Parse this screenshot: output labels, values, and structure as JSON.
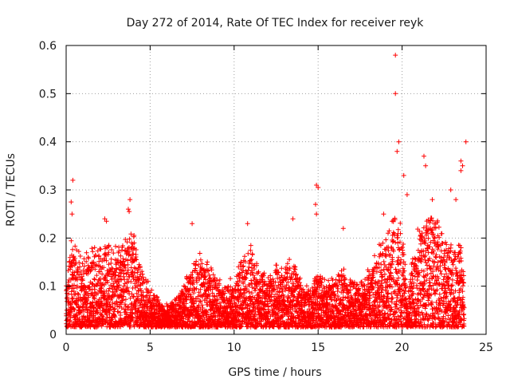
{
  "chart_data": {
    "type": "scatter",
    "title": "Day 272 of 2014, Rate Of TEC Index for receiver reyk",
    "xlabel": "GPS time / hours",
    "ylabel": "ROTI / TECUs",
    "xlim": [
      0,
      25
    ],
    "ylim": [
      0,
      0.6
    ],
    "xticks": [
      "0",
      "5",
      "10",
      "15",
      "20",
      "25"
    ],
    "yticks": [
      "0",
      "0.1",
      "0.2",
      "0.3",
      "0.4",
      "0.5",
      "0.6"
    ],
    "grid": true,
    "marker": "plus",
    "color": "#ff0000",
    "envelope": {
      "x": [
        0.0,
        0.3,
        0.5,
        1.0,
        1.5,
        2.0,
        2.5,
        3.0,
        3.5,
        4.0,
        4.5,
        5.0,
        5.5,
        6.0,
        6.5,
        7.0,
        7.5,
        8.0,
        8.5,
        9.0,
        9.5,
        10.0,
        10.5,
        11.0,
        11.5,
        12.0,
        12.5,
        13.0,
        13.5,
        14.0,
        14.5,
        15.0,
        15.5,
        16.0,
        16.5,
        17.0,
        17.5,
        18.0,
        18.5,
        19.0,
        19.5,
        20.0,
        20.3,
        20.6,
        21.0,
        21.5,
        22.0,
        22.5,
        23.0,
        23.5,
        23.7
      ],
      "y": [
        0.12,
        0.2,
        0.18,
        0.15,
        0.17,
        0.18,
        0.18,
        0.17,
        0.2,
        0.21,
        0.13,
        0.1,
        0.07,
        0.06,
        0.07,
        0.1,
        0.14,
        0.16,
        0.15,
        0.11,
        0.1,
        0.12,
        0.16,
        0.17,
        0.13,
        0.12,
        0.14,
        0.13,
        0.16,
        0.11,
        0.09,
        0.13,
        0.1,
        0.12,
        0.14,
        0.11,
        0.1,
        0.13,
        0.17,
        0.2,
        0.25,
        0.22,
        0.09,
        0.15,
        0.22,
        0.25,
        0.24,
        0.2,
        0.17,
        0.19,
        0.13
      ],
      "floor": 0.015,
      "spacing_hours": 0.0045
    },
    "notable_points": [
      {
        "x": 19.6,
        "y": 0.58
      },
      {
        "x": 19.6,
        "y": 0.5
      },
      {
        "x": 19.8,
        "y": 0.4
      },
      {
        "x": 19.7,
        "y": 0.38
      },
      {
        "x": 23.8,
        "y": 0.4
      },
      {
        "x": 21.3,
        "y": 0.37
      },
      {
        "x": 21.4,
        "y": 0.35
      },
      {
        "x": 23.5,
        "y": 0.36
      },
      {
        "x": 23.6,
        "y": 0.35
      },
      {
        "x": 23.5,
        "y": 0.34
      },
      {
        "x": 20.1,
        "y": 0.33
      },
      {
        "x": 20.3,
        "y": 0.29
      },
      {
        "x": 0.4,
        "y": 0.32
      },
      {
        "x": 0.3,
        "y": 0.275
      },
      {
        "x": 0.35,
        "y": 0.25
      },
      {
        "x": 14.9,
        "y": 0.31
      },
      {
        "x": 15.0,
        "y": 0.305
      },
      {
        "x": 14.85,
        "y": 0.27
      },
      {
        "x": 14.9,
        "y": 0.25
      },
      {
        "x": 3.8,
        "y": 0.28
      },
      {
        "x": 3.7,
        "y": 0.26
      },
      {
        "x": 3.75,
        "y": 0.255
      },
      {
        "x": 2.3,
        "y": 0.24
      },
      {
        "x": 2.4,
        "y": 0.235
      },
      {
        "x": 7.5,
        "y": 0.23
      },
      {
        "x": 10.8,
        "y": 0.23
      },
      {
        "x": 13.5,
        "y": 0.24
      },
      {
        "x": 16.5,
        "y": 0.22
      },
      {
        "x": 18.9,
        "y": 0.25
      },
      {
        "x": 22.9,
        "y": 0.3
      },
      {
        "x": 23.2,
        "y": 0.28
      },
      {
        "x": 21.8,
        "y": 0.28
      }
    ]
  }
}
